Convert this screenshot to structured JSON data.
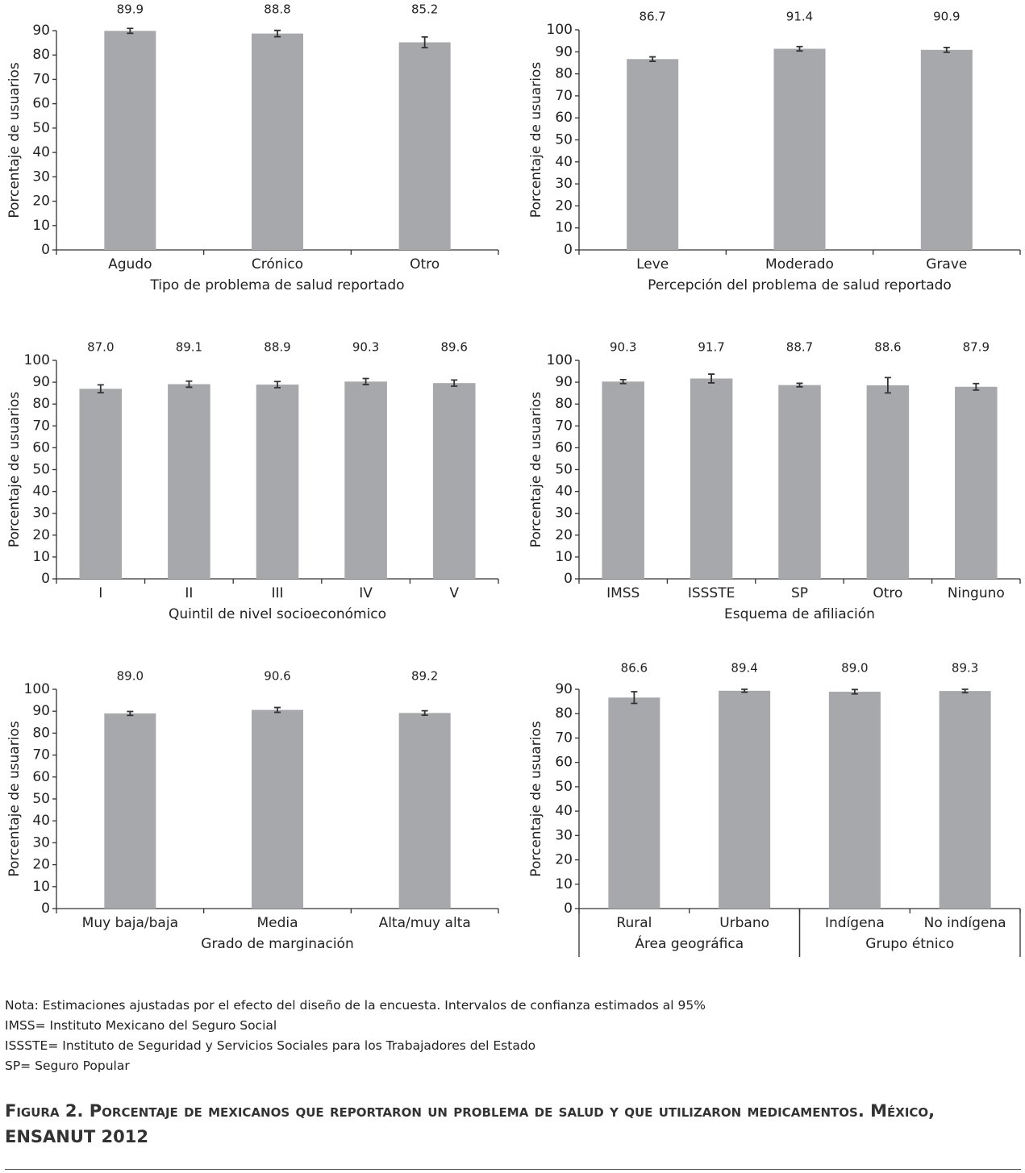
{
  "chart_data": [
    {
      "type": "bar",
      "ylabel": "Porcentaje de usuarios",
      "xlabel": "Tipo de problema de salud reportado",
      "categories": [
        "Agudo",
        "Crónico",
        "Otro"
      ],
      "values": [
        89.9,
        88.8,
        85.2
      ],
      "value_labels": [
        "89.9",
        "88.8",
        "85.2"
      ],
      "errors": [
        1.0,
        1.3,
        2.2
      ],
      "color": "#a6a8ab",
      "ylim": [
        0,
        90
      ],
      "yticks": [
        0,
        10,
        20,
        30,
        40,
        50,
        60,
        70,
        80,
        90
      ]
    },
    {
      "type": "bar",
      "ylabel": "Porcentaje de usuarios",
      "xlabel": "Percepción del problema de salud reportado",
      "categories": [
        "Leve",
        "Moderado",
        "Grave"
      ],
      "values": [
        86.7,
        91.4,
        90.9
      ],
      "value_labels": [
        "86.7",
        "91.4",
        "90.9"
      ],
      "errors": [
        1.0,
        1.0,
        1.1
      ],
      "color": "#a6a8ab",
      "ylim": [
        0,
        100
      ],
      "yticks": [
        0,
        10,
        20,
        30,
        40,
        50,
        60,
        70,
        80,
        90,
        100
      ]
    },
    {
      "type": "bar",
      "ylabel": "Porcentaje de usuarios",
      "xlabel": "Quintil de nivel socioeconómico",
      "categories": [
        "I",
        "II",
        "III",
        "IV",
        "V"
      ],
      "values": [
        87.0,
        89.1,
        88.9,
        90.3,
        89.6
      ],
      "value_labels": [
        "87.0",
        "89.1",
        "88.9",
        "90.3",
        "89.6"
      ],
      "errors": [
        1.8,
        1.4,
        1.4,
        1.4,
        1.4
      ],
      "color": "#a6a8ab",
      "ylim": [
        0,
        100
      ],
      "yticks": [
        0,
        10,
        20,
        30,
        40,
        50,
        60,
        70,
        80,
        90,
        100
      ]
    },
    {
      "type": "bar",
      "ylabel": "Porcentaje de usuarios",
      "xlabel": "Esquema de afiliación",
      "categories": [
        "IMSS",
        "ISSSTE",
        "SP",
        "Otro",
        "Ninguno"
      ],
      "values": [
        90.3,
        91.7,
        88.7,
        88.6,
        87.9
      ],
      "value_labels": [
        "90.3",
        "91.7",
        "88.7",
        "88.6",
        "87.9"
      ],
      "errors": [
        0.9,
        2.0,
        0.8,
        3.5,
        1.5
      ],
      "color": "#a6a8ab",
      "ylim": [
        0,
        100
      ],
      "yticks": [
        0,
        10,
        20,
        30,
        40,
        50,
        60,
        70,
        80,
        90,
        100
      ]
    },
    {
      "type": "bar",
      "ylabel": "Porcentaje de usuarios",
      "xlabel": "Grado de marginación",
      "categories": [
        "Muy baja/baja",
        "Media",
        "Alta/muy alta"
      ],
      "values": [
        89.0,
        90.6,
        89.2
      ],
      "value_labels": [
        "89.0",
        "90.6",
        "89.2"
      ],
      "errors": [
        0.9,
        1.1,
        1.0
      ],
      "color": "#a6a8ab",
      "ylim": [
        0,
        100
      ],
      "yticks": [
        0,
        10,
        20,
        30,
        40,
        50,
        60,
        70,
        80,
        90,
        100
      ]
    },
    {
      "type": "grouped-bar",
      "ylabel": "Porcentaje de usuarios",
      "color": "#a6a8ab",
      "ylim": [
        0,
        90
      ],
      "yticks": [
        0,
        10,
        20,
        30,
        40,
        50,
        60,
        70,
        80,
        90
      ],
      "groups": [
        {
          "name": "Área geográfica",
          "categories": [
            "Rural",
            "Urbano"
          ],
          "values": [
            86.6,
            89.4
          ],
          "value_labels": [
            "86.6",
            "89.4"
          ],
          "errors": [
            2.4,
            0.6
          ]
        },
        {
          "name": "Grupo étnico",
          "categories": [
            "Indígena",
            "No indígena"
          ],
          "values": [
            89.0,
            89.3
          ],
          "value_labels": [
            "89.0",
            "89.3"
          ],
          "errors": [
            0.9,
            0.7
          ]
        }
      ]
    }
  ],
  "notes": [
    "Nota: Estimaciones ajustadas por el efecto del diseño de la encuesta. Intervalos de confianza estimados al 95%",
    "IMSS= Instituto Mexicano del Seguro Social",
    "ISSSTE= Instituto de Seguridad y Servicios Sociales para los Trabajadores del Estado",
    "SP= Seguro Popular"
  ],
  "caption": "Figura 2. Porcentaje de mexicanos que reportaron un problema de salud y que utilizaron medicamentos. México, ENSANUT 2012"
}
